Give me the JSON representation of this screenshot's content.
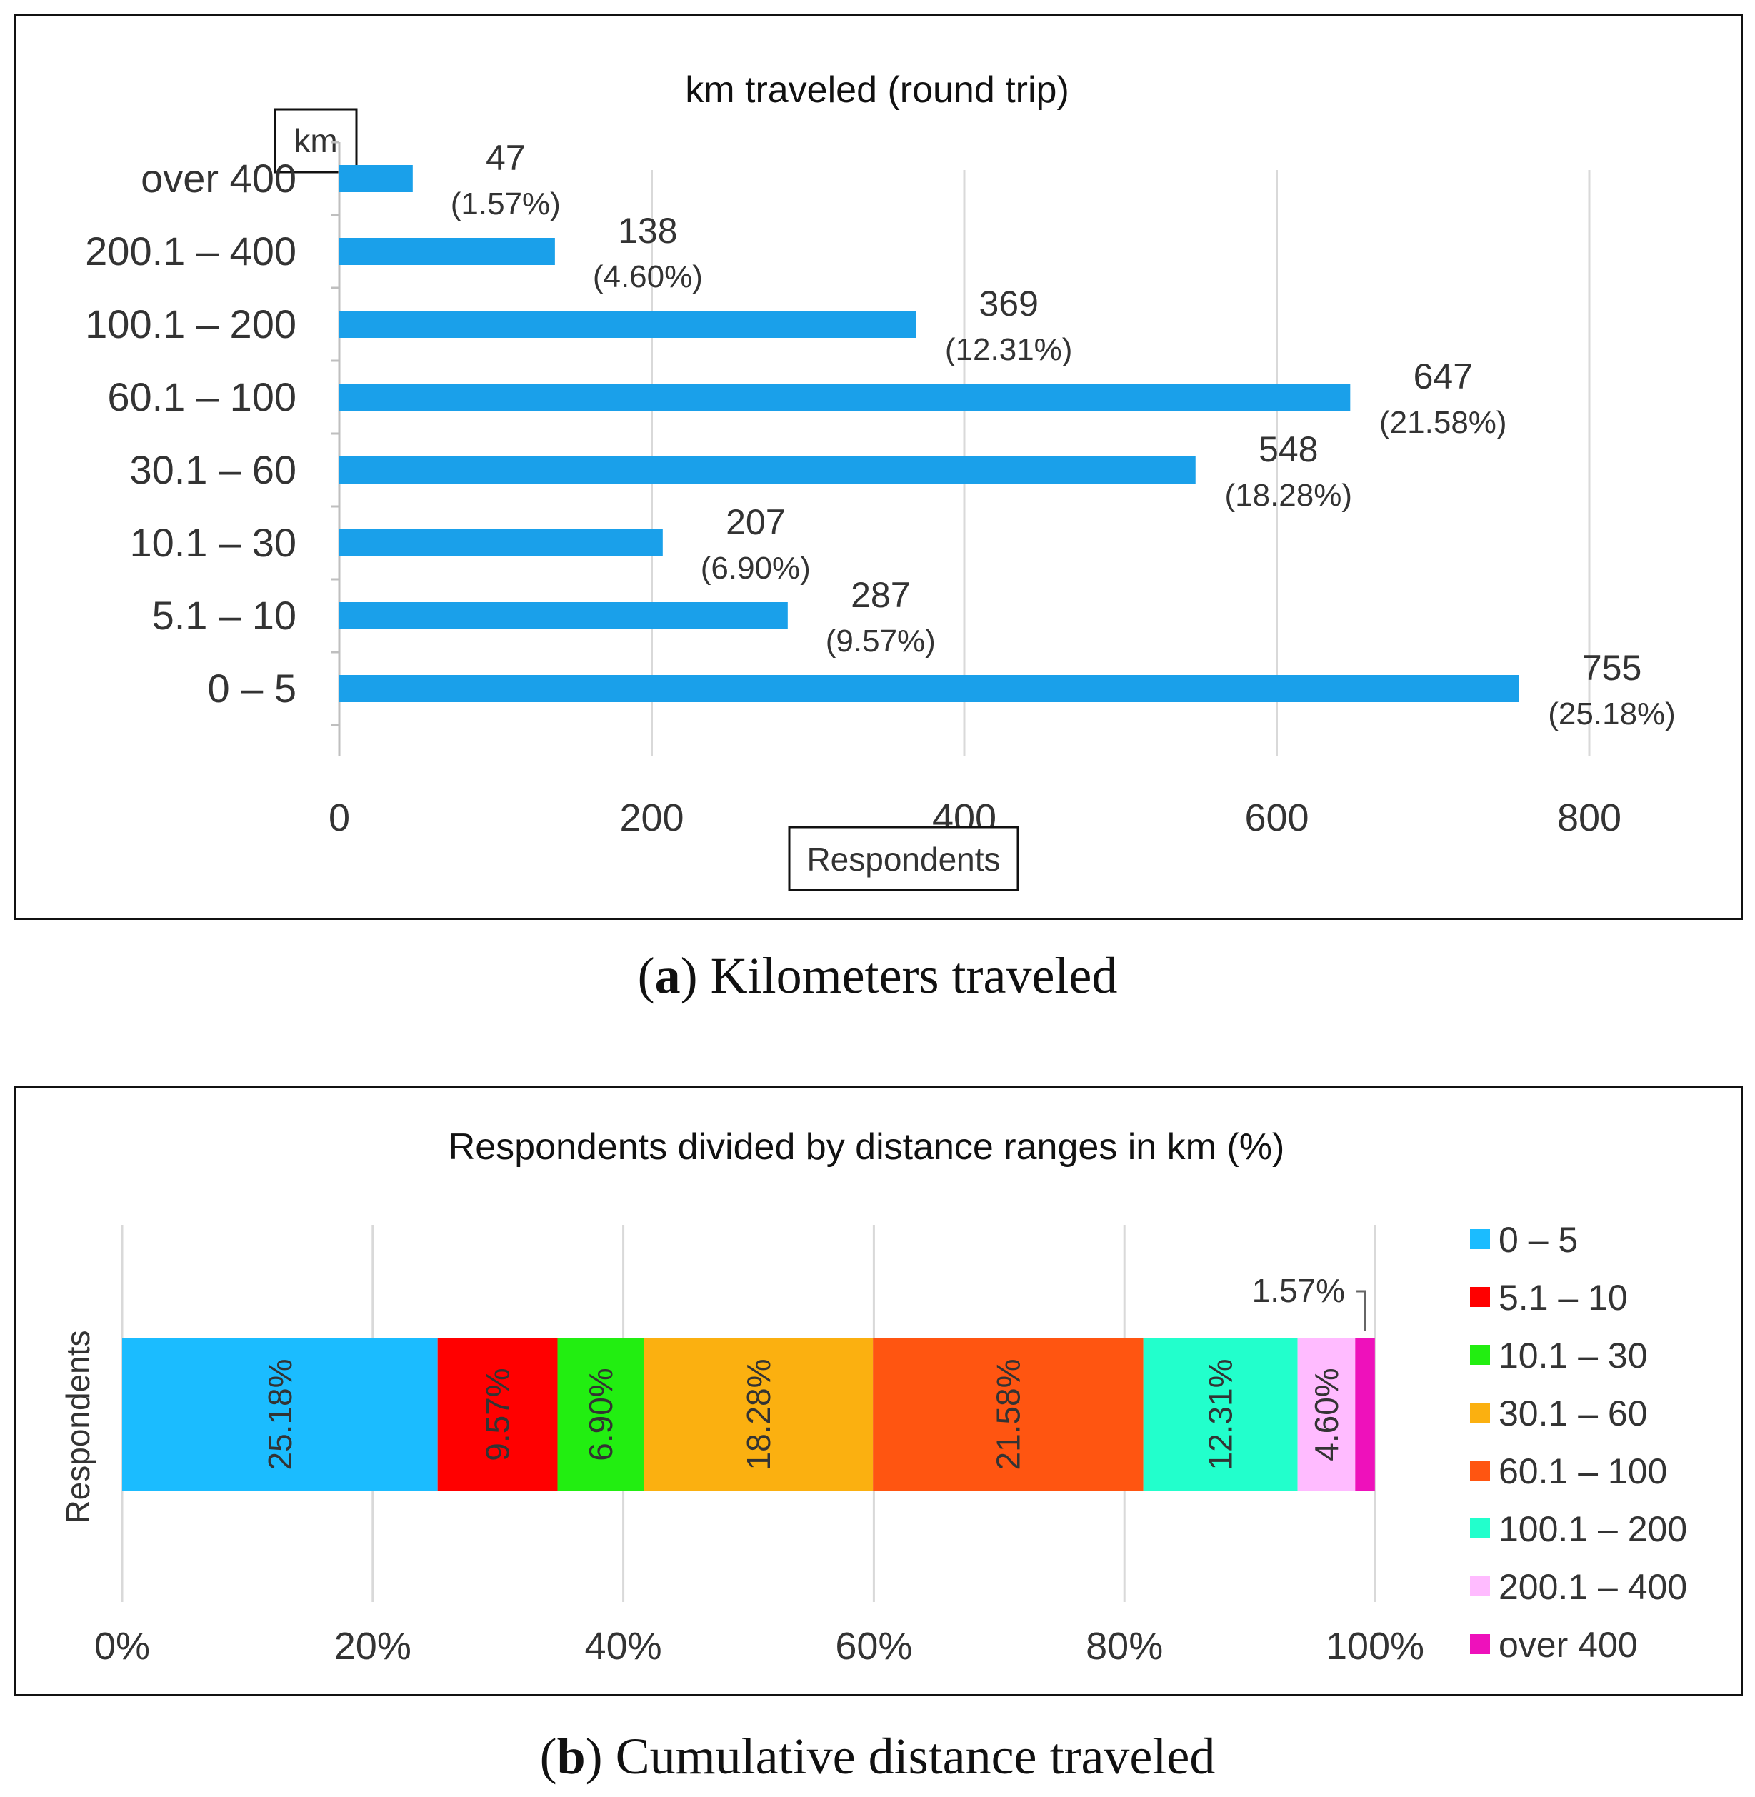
{
  "chart_data": [
    {
      "type": "bar",
      "orientation": "horizontal",
      "title": "km traveled (round trip)",
      "ylabel": "km",
      "xlabel": "Respondents",
      "categories": [
        "over 400",
        "200.1 – 400",
        "100.1 – 200",
        "60.1 – 100",
        "30.1 – 60",
        "10.1 – 30",
        "5.1 – 10",
        "0 – 5"
      ],
      "values": [
        47,
        138,
        369,
        647,
        548,
        207,
        287,
        755
      ],
      "percent_labels": [
        "(1.57%)",
        "(4.60%)",
        "(12.31%)",
        "(21.58%)",
        "(18.28%)",
        "(6.90%)",
        "(9.57%)",
        "(25.18%)"
      ],
      "xlim": [
        0,
        800
      ],
      "xticks": [
        0,
        200,
        400,
        600,
        800
      ],
      "xtick_labels": [
        "0",
        "200",
        "400",
        "600",
        "800"
      ],
      "grid": true,
      "color": "#1aa0ea"
    },
    {
      "type": "bar",
      "orientation": "horizontal",
      "stacked": true,
      "title": "Respondents divided by distance ranges in km (%)",
      "ylabel": "Respondents",
      "xlim": [
        0,
        100
      ],
      "xticks": [
        0,
        20,
        40,
        60,
        80,
        100
      ],
      "xtick_labels": [
        "0%",
        "20%",
        "40%",
        "60%",
        "80%",
        "100%"
      ],
      "grid": true,
      "legend_position": "right",
      "series": [
        {
          "name": "0 – 5",
          "value": 25.18,
          "label": "25.18%",
          "color": "#1bbcff"
        },
        {
          "name": "5.1 – 10",
          "value": 9.57,
          "label": "9.57%",
          "color": "#ff0000"
        },
        {
          "name": "10.1 – 30",
          "value": 6.9,
          "label": "6.90%",
          "color": "#22ee11"
        },
        {
          "name": "30.1 – 60",
          "value": 18.28,
          "label": "18.28%",
          "color": "#fbb010"
        },
        {
          "name": "60.1 – 100",
          "value": 21.58,
          "label": "21.58%",
          "color": "#ff5511"
        },
        {
          "name": "100.1 – 200",
          "value": 12.31,
          "label": "12.31%",
          "color": "#22ffcc"
        },
        {
          "name": "200.1 – 400",
          "value": 4.6,
          "label": "4.60%",
          "color": "#ffbbff"
        },
        {
          "name": "over 400",
          "value": 1.57,
          "label": "1.57%",
          "color": "#ee11bb"
        }
      ]
    }
  ],
  "captions": {
    "a_letter": "a",
    "a_text": " Kilometers traveled",
    "b_letter": "b",
    "b_text": " Cumulative distance traveled"
  },
  "colors": {
    "gridline": "#d9d9d9",
    "axis": "#bfbfbf",
    "text": "#333333"
  }
}
